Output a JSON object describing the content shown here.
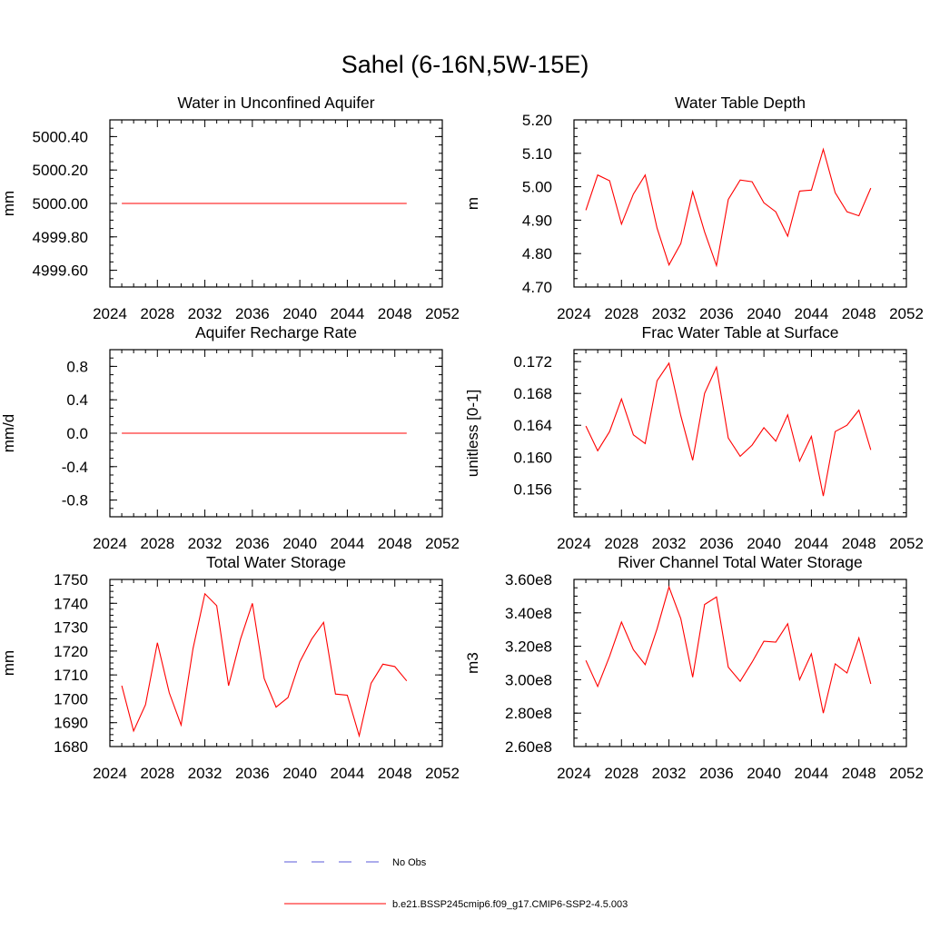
{
  "title": "Sahel (6-16N,5W-15E)",
  "legend": [
    {
      "label": "No Obs",
      "color": "#5a5ad8",
      "style": "dashed"
    },
    {
      "label": "b.e21.BSSP245cmip6.f09_g17.CMIP6-SSP2-4.5.003",
      "color": "#ff0000",
      "style": "solid"
    }
  ],
  "chart_data": [
    {
      "type": "line",
      "title": "Water in Unconfined Aquifer",
      "ylabel": "mm",
      "xlim": [
        2024,
        2052
      ],
      "ylim": [
        4999.5,
        5000.5
      ],
      "xticks": [
        2024,
        2028,
        2032,
        2036,
        2040,
        2044,
        2048,
        2052
      ],
      "yticks": [
        4999.6,
        4999.8,
        5000.0,
        5000.2,
        5000.4
      ],
      "ytick_labels": [
        "4999.60",
        "4999.80",
        "5000.00",
        "5000.20",
        "5000.40"
      ],
      "series": [
        {
          "color": "#ff0000",
          "x": [
            2025,
            2026,
            2027,
            2028,
            2029,
            2030,
            2031,
            2032,
            2033,
            2034,
            2035,
            2036,
            2037,
            2038,
            2039,
            2040,
            2041,
            2042,
            2043,
            2044,
            2045,
            2046,
            2047,
            2048,
            2049
          ],
          "y": [
            5000.0,
            5000.0,
            5000.0,
            5000.0,
            5000.0,
            5000.0,
            5000.0,
            5000.0,
            5000.0,
            5000.0,
            5000.0,
            5000.0,
            5000.0,
            5000.0,
            5000.0,
            5000.0,
            5000.0,
            5000.0,
            5000.0,
            5000.0,
            5000.0,
            5000.0,
            5000.0,
            5000.0,
            5000.0
          ]
        }
      ]
    },
    {
      "type": "line",
      "title": "Water Table Depth",
      "ylabel": "m",
      "xlim": [
        2024,
        2052
      ],
      "ylim": [
        4.7,
        5.2
      ],
      "xticks": [
        2024,
        2028,
        2032,
        2036,
        2040,
        2044,
        2048,
        2052
      ],
      "yticks": [
        4.7,
        4.8,
        4.9,
        5.0,
        5.1,
        5.2
      ],
      "ytick_labels": [
        "4.70",
        "4.80",
        "4.90",
        "5.00",
        "5.10",
        "5.20"
      ],
      "series": [
        {
          "color": "#ff0000",
          "x": [
            2025,
            2026,
            2027,
            2028,
            2029,
            2030,
            2031,
            2032,
            2033,
            2034,
            2035,
            2036,
            2037,
            2038,
            2039,
            2040,
            2041,
            2042,
            2043,
            2044,
            2045,
            2046,
            2047,
            2048,
            2049
          ],
          "y": [
            4.93,
            5.035,
            5.018,
            4.888,
            4.978,
            5.035,
            4.876,
            4.766,
            4.83,
            4.985,
            4.865,
            4.764,
            4.962,
            5.02,
            5.015,
            4.952,
            4.925,
            4.852,
            4.987,
            4.99,
            5.112,
            4.982,
            4.925,
            4.913,
            4.996
          ]
        }
      ]
    },
    {
      "type": "line",
      "title": "Aquifer Recharge Rate",
      "ylabel": "mm/d",
      "xlim": [
        2024,
        2052
      ],
      "ylim": [
        -1.0,
        1.0
      ],
      "xticks": [
        2024,
        2028,
        2032,
        2036,
        2040,
        2044,
        2048,
        2052
      ],
      "yticks": [
        -0.8,
        -0.4,
        0.0,
        0.4,
        0.8
      ],
      "ytick_labels": [
        "-0.8",
        "-0.4",
        "0.0",
        "0.4",
        "0.8"
      ],
      "series": [
        {
          "color": "#ff0000",
          "x": [
            2025,
            2026,
            2027,
            2028,
            2029,
            2030,
            2031,
            2032,
            2033,
            2034,
            2035,
            2036,
            2037,
            2038,
            2039,
            2040,
            2041,
            2042,
            2043,
            2044,
            2045,
            2046,
            2047,
            2048,
            2049
          ],
          "y": [
            0,
            0,
            0,
            0,
            0,
            0,
            0,
            0,
            0,
            0,
            0,
            0,
            0,
            0,
            0,
            0,
            0,
            0,
            0,
            0,
            0,
            0,
            0,
            0,
            0
          ]
        }
      ]
    },
    {
      "type": "line",
      "title": "Frac Water Table at Surface",
      "ylabel": "unitless [0-1]",
      "xlim": [
        2024,
        2052
      ],
      "ylim": [
        0.1525,
        0.1735
      ],
      "xticks": [
        2024,
        2028,
        2032,
        2036,
        2040,
        2044,
        2048,
        2052
      ],
      "yticks": [
        0.156,
        0.16,
        0.164,
        0.168,
        0.172
      ],
      "ytick_labels": [
        "0.156",
        "0.160",
        "0.164",
        "0.168",
        "0.172"
      ],
      "series": [
        {
          "color": "#ff0000",
          "x": [
            2025,
            2026,
            2027,
            2028,
            2029,
            2030,
            2031,
            2032,
            2033,
            2034,
            2035,
            2036,
            2037,
            2038,
            2039,
            2040,
            2041,
            2042,
            2043,
            2044,
            2045,
            2046,
            2047,
            2048,
            2049
          ],
          "y": [
            0.1639,
            0.1608,
            0.1632,
            0.1673,
            0.1628,
            0.1617,
            0.1696,
            0.1718,
            0.1652,
            0.1596,
            0.168,
            0.1713,
            0.1624,
            0.1601,
            0.1615,
            0.1637,
            0.162,
            0.1653,
            0.1595,
            0.1626,
            0.1551,
            0.1632,
            0.164,
            0.1659,
            0.1609
          ]
        }
      ]
    },
    {
      "type": "line",
      "title": "Total Water Storage",
      "ylabel": "mm",
      "xlim": [
        2024,
        2052
      ],
      "ylim": [
        1680,
        1750
      ],
      "xticks": [
        2024,
        2028,
        2032,
        2036,
        2040,
        2044,
        2048,
        2052
      ],
      "yticks": [
        1680,
        1690,
        1700,
        1710,
        1720,
        1730,
        1740,
        1750
      ],
      "ytick_labels": [
        "1680",
        "1690",
        "1700",
        "1710",
        "1720",
        "1730",
        "1740",
        "1750"
      ],
      "series": [
        {
          "color": "#ff0000",
          "x": [
            2025,
            2026,
            2027,
            2028,
            2029,
            2030,
            2031,
            2032,
            2033,
            2034,
            2035,
            2036,
            2037,
            2038,
            2039,
            2040,
            2041,
            2042,
            2043,
            2044,
            2045,
            2046,
            2047,
            2048,
            2049
          ],
          "y": [
            1705.5,
            1686.5,
            1697.5,
            1723.5,
            1702.5,
            1689.0,
            1721.0,
            1744.0,
            1739.0,
            1705.5,
            1725.0,
            1740.0,
            1708.5,
            1696.5,
            1700.5,
            1715.5,
            1725.0,
            1732.0,
            1702.0,
            1701.5,
            1684.5,
            1706.5,
            1714.5,
            1713.5,
            1707.5
          ]
        }
      ]
    },
    {
      "type": "line",
      "title": "River Channel Total Water Storage",
      "ylabel": "m3",
      "xlim": [
        2024,
        2052
      ],
      "ylim": [
        260000000,
        360000000
      ],
      "xticks": [
        2024,
        2028,
        2032,
        2036,
        2040,
        2044,
        2048,
        2052
      ],
      "yticks": [
        260000000,
        280000000,
        300000000,
        320000000,
        340000000,
        360000000
      ],
      "ytick_labels": [
        "2.60e8",
        "2.80e8",
        "3.00e8",
        "3.20e8",
        "3.40e8",
        "3.60e8"
      ],
      "series": [
        {
          "color": "#ff0000",
          "x": [
            2025,
            2026,
            2027,
            2028,
            2029,
            2030,
            2031,
            2032,
            2033,
            2034,
            2035,
            2036,
            2037,
            2038,
            2039,
            2040,
            2041,
            2042,
            2043,
            2044,
            2045,
            2046,
            2047,
            2048,
            2049
          ],
          "y": [
            311500000,
            296000000,
            314000000,
            334500000,
            318000000,
            309000000,
            330500000,
            355500000,
            336500000,
            301500000,
            345000000,
            349500000,
            307500000,
            299000000,
            310500000,
            323000000,
            322500000,
            333500000,
            300000000,
            315500000,
            280000000,
            309500000,
            304000000,
            325000000,
            297500000
          ]
        }
      ]
    }
  ]
}
